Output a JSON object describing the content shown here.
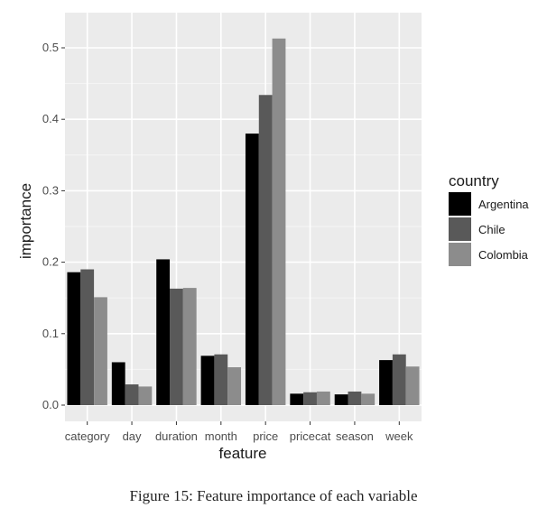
{
  "chart_data": {
    "type": "bar",
    "xlabel": "feature",
    "ylabel": "importance",
    "categories": [
      "category",
      "day",
      "duration",
      "month",
      "price",
      "pricecat",
      "season",
      "week"
    ],
    "series": [
      {
        "name": "Argentina",
        "color": "#000000",
        "values": [
          0.186,
          0.06,
          0.204,
          0.069,
          0.38,
          0.016,
          0.015,
          0.063
        ]
      },
      {
        "name": "Chile",
        "color": "#595959",
        "values": [
          0.19,
          0.029,
          0.163,
          0.071,
          0.434,
          0.018,
          0.019,
          0.071
        ]
      },
      {
        "name": "Colombia",
        "color": "#8c8c8c",
        "values": [
          0.151,
          0.026,
          0.164,
          0.053,
          0.513,
          0.019,
          0.016,
          0.054
        ]
      }
    ],
    "yticks": [
      "0.0",
      "0.1",
      "0.2",
      "0.3",
      "0.4",
      "0.5"
    ],
    "ylim": [
      -0.01,
      0.53
    ],
    "grid": true,
    "legend": {
      "title": "country",
      "position": "right"
    }
  },
  "caption": "Figure 15: Feature importance of each variable"
}
